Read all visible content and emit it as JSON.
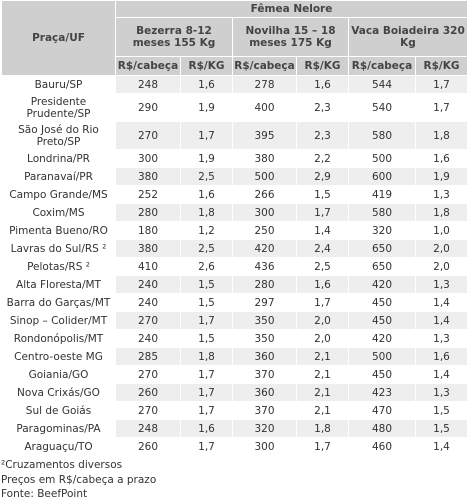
{
  "table": {
    "group_header": "Fêmea Nelore",
    "place_header": "Praça/UF",
    "categories": [
      "Bezerra 8-12 meses 155 Kg",
      "Novilha 15 – 18 meses 175 Kg",
      "Vaca Boiadeira 320 Kg"
    ],
    "subheaders": [
      "R$/cabeça",
      "R$/KG",
      "R$/cabeça",
      "R$/KG",
      "R$/cabeça",
      "R$/KG"
    ],
    "rows": [
      {
        "place": "Bauru/SP",
        "values": [
          "248",
          "1,6",
          "278",
          "1,6",
          "544",
          "1,7"
        ]
      },
      {
        "place": "Presidente Prudente/SP",
        "values": [
          "290",
          "1,9",
          "400",
          "2,3",
          "540",
          "1,7"
        ]
      },
      {
        "place": "São José do Rio Preto/SP",
        "values": [
          "270",
          "1,7",
          "395",
          "2,3",
          "580",
          "1,8"
        ]
      },
      {
        "place": "Londrina/PR",
        "values": [
          "300",
          "1,9",
          "380",
          "2,2",
          "500",
          "1,6"
        ]
      },
      {
        "place": "Paranavaí/PR",
        "values": [
          "380",
          "2,5",
          "500",
          "2,9",
          "600",
          "1,9"
        ]
      },
      {
        "place": "Campo Grande/MS",
        "values": [
          "252",
          "1,6",
          "266",
          "1,5",
          "419",
          "1,3"
        ]
      },
      {
        "place": "Coxim/MS",
        "values": [
          "280",
          "1,8",
          "300",
          "1,7",
          "580",
          "1,8"
        ]
      },
      {
        "place": "Pimenta Bueno/RO",
        "values": [
          "180",
          "1,2",
          "250",
          "1,4",
          "320",
          "1,0"
        ]
      },
      {
        "place": "Lavras do Sul/RS ²",
        "values": [
          "380",
          "2,5",
          "420",
          "2,4",
          "650",
          "2,0"
        ]
      },
      {
        "place": "Pelotas/RS ²",
        "values": [
          "410",
          "2,6",
          "436",
          "2,5",
          "650",
          "2,0"
        ]
      },
      {
        "place": "Alta Floresta/MT",
        "values": [
          "240",
          "1,5",
          "280",
          "1,6",
          "420",
          "1,3"
        ]
      },
      {
        "place": "Barra do Garças/MT",
        "values": [
          "240",
          "1,5",
          "297",
          "1,7",
          "450",
          "1,4"
        ]
      },
      {
        "place": "Sinop – Colider/MT",
        "values": [
          "270",
          "1,7",
          "350",
          "2,0",
          "450",
          "1,4"
        ]
      },
      {
        "place": "Rondonópolis/MT",
        "values": [
          "240",
          "1,5",
          "350",
          "2,0",
          "420",
          "1,3"
        ]
      },
      {
        "place": "Centro-oeste MG",
        "values": [
          "285",
          "1,8",
          "360",
          "2,1",
          "500",
          "1,6"
        ]
      },
      {
        "place": "Goiania/GO",
        "values": [
          "270",
          "1,7",
          "370",
          "2,1",
          "450",
          "1,4"
        ]
      },
      {
        "place": "Nova Crixás/GO",
        "values": [
          "260",
          "1,7",
          "360",
          "2,1",
          "423",
          "1,3"
        ]
      },
      {
        "place": "Sul de Goiás",
        "values": [
          "270",
          "1,7",
          "370",
          "2,1",
          "470",
          "1,5"
        ]
      },
      {
        "place": "Paragominas/PA",
        "values": [
          "248",
          "1,6",
          "320",
          "1,8",
          "480",
          "1,5"
        ]
      },
      {
        "place": "Araguaçu/TO",
        "values": [
          "260",
          "1,7",
          "300",
          "1,7",
          "460",
          "1,4"
        ]
      }
    ]
  },
  "notes": [
    "²Cruzamentos diversos",
    "Preços em R$/cabeça a prazo",
    "Fonte: BeefPoint"
  ]
}
